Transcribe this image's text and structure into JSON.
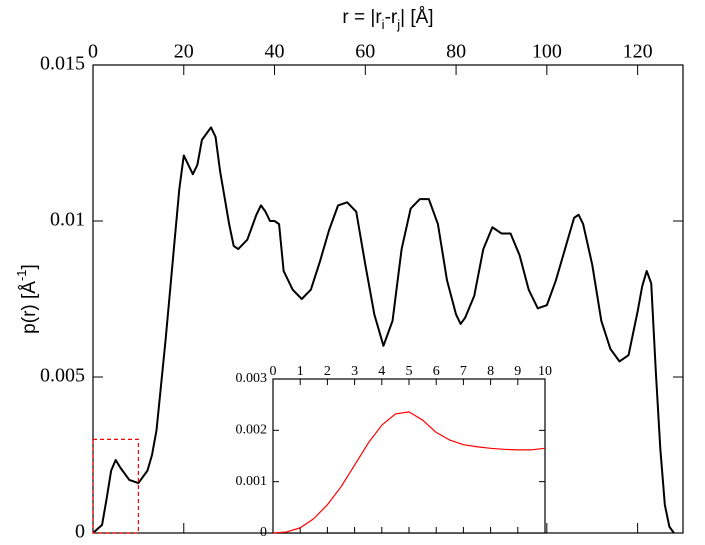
{
  "chart_data": [
    {
      "type": "line",
      "xlabel": [
        {
          "text": "r = |r"
        },
        {
          "text": "i",
          "sub": true
        },
        {
          "text": "-r"
        },
        {
          "text": "j",
          "sub": true
        },
        {
          "text": "| [Å]"
        }
      ],
      "ylabel": [
        {
          "text": "p(r) [Å"
        },
        {
          "text": "-1",
          "sup": true
        },
        {
          "text": "]"
        }
      ],
      "x": [
        0,
        2,
        3,
        4,
        5,
        6,
        8,
        10,
        12,
        13,
        14,
        16,
        18,
        19,
        20,
        21,
        22,
        23,
        24,
        26,
        27,
        28,
        30,
        31,
        32,
        34,
        36,
        37,
        38,
        39,
        40,
        41,
        42,
        44,
        46,
        48,
        50,
        52,
        54,
        56,
        58,
        60,
        62,
        64,
        66,
        68,
        70,
        72,
        74,
        76,
        78,
        80,
        81,
        82,
        84,
        86,
        88,
        90,
        92,
        94,
        96,
        98,
        100,
        102,
        104,
        106,
        107,
        108,
        110,
        112,
        114,
        116,
        118,
        120,
        121,
        122,
        123,
        124,
        125,
        126,
        127,
        128
      ],
      "series": [
        {
          "color": "#000000",
          "values": [
            0,
            0.00026,
            0.0011,
            0.002,
            0.00234,
            0.0021,
            0.0017,
            0.0016,
            0.002,
            0.0025,
            0.0033,
            0.0062,
            0.0094,
            0.011,
            0.0121,
            0.0118,
            0.0115,
            0.0118,
            0.0126,
            0.013,
            0.0127,
            0.0116,
            0.0099,
            0.0092,
            0.0091,
            0.0094,
            0.0102,
            0.0105,
            0.0103,
            0.01,
            0.01,
            0.0099,
            0.0084,
            0.0078,
            0.0075,
            0.0078,
            0.0087,
            0.0097,
            0.0105,
            0.0106,
            0.0103,
            0.0086,
            0.007,
            0.006,
            0.0068,
            0.0091,
            0.0104,
            0.0107,
            0.0107,
            0.0099,
            0.0081,
            0.007,
            0.0067,
            0.0069,
            0.0076,
            0.0091,
            0.0098,
            0.0096,
            0.0096,
            0.0089,
            0.0078,
            0.0072,
            0.0073,
            0.0081,
            0.0091,
            0.0101,
            0.0102,
            0.0099,
            0.0086,
            0.0068,
            0.0059,
            0.0055,
            0.0057,
            0.0071,
            0.0079,
            0.0084,
            0.008,
            0.0052,
            0.0027,
            0.0009,
            0.0002,
            0
          ]
        }
      ],
      "xlim": [
        0,
        130
      ],
      "xticks": [
        0,
        20,
        40,
        60,
        80,
        100,
        120
      ],
      "ylim": [
        0,
        0.015
      ],
      "yticks": [
        0,
        0.005,
        0.01,
        0.015
      ]
    },
    {
      "type": "line",
      "x": [
        0,
        0.5,
        1,
        1.5,
        2,
        2.5,
        3,
        3.5,
        4,
        4.5,
        5,
        5.5,
        6,
        6.5,
        7,
        7.5,
        8,
        8.5,
        9,
        9.5,
        10
      ],
      "series": [
        {
          "color": "#ff0000",
          "values": [
            0,
            2e-05,
            0.0001,
            0.00028,
            0.00055,
            0.0009,
            0.00132,
            0.00175,
            0.0021,
            0.00232,
            0.00236,
            0.0022,
            0.00196,
            0.00181,
            0.00172,
            0.00168,
            0.00165,
            0.00163,
            0.00162,
            0.00162,
            0.00165
          ]
        }
      ],
      "xlim": [
        0,
        10
      ],
      "xticks": [
        0,
        1,
        2,
        3,
        4,
        5,
        6,
        7,
        8,
        9,
        10
      ],
      "ylim": [
        0,
        0.003
      ],
      "yticks": [
        0,
        0.001,
        0.002,
        0.003
      ]
    }
  ]
}
